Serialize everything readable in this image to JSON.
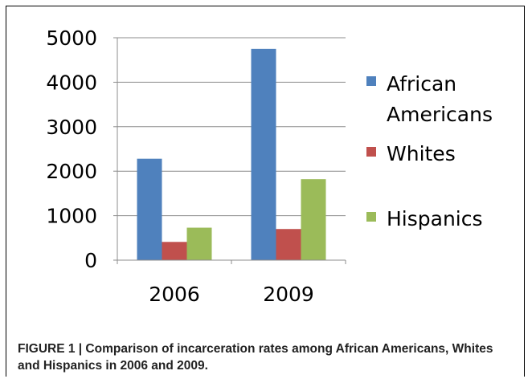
{
  "chart_data": {
    "type": "bar",
    "categories": [
      "2006",
      "2009"
    ],
    "series": [
      {
        "name": "African Americans",
        "values": [
          2280,
          4750
        ],
        "color": "#4F81BD"
      },
      {
        "name": "Whites",
        "values": [
          410,
          700
        ],
        "color": "#C0504D"
      },
      {
        "name": "Hispanics",
        "values": [
          730,
          1820
        ],
        "color": "#9BBB59"
      }
    ],
    "ylim": [
      0,
      5000
    ],
    "yticks": [
      0,
      1000,
      2000,
      3000,
      4000,
      5000
    ],
    "grid": true,
    "legend": "right",
    "title": "",
    "xlabel": "",
    "ylabel": ""
  },
  "legend": {
    "african_americans_line1": "African",
    "african_americans_line2": "Americans",
    "whites": "Whites",
    "hispanics": "Hispanics"
  },
  "caption": {
    "text": "FIGURE 1 | Comparison of incarceration rates among African Americans, Whites and Hispanics in 2006 and 2009."
  }
}
